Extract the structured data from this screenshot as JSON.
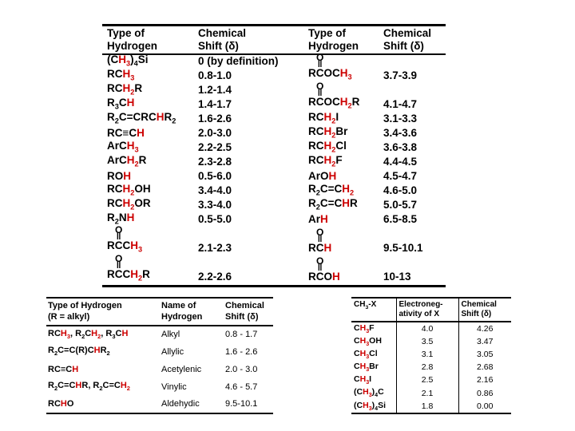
{
  "colors": {
    "red": "#cc0000",
    "text": "#000000",
    "background": "#ffffff"
  },
  "main_table": {
    "headers": {
      "type": "Type of\nHydrogen",
      "shift": "Chemical\nShift (δ)"
    },
    "left_rows": [
      {
        "formula": "(C*H~3~*)~4~Si",
        "shift": "0 (by definition)"
      },
      {
        "formula": "RC*H~3~*",
        "shift": "0.8-1.0"
      },
      {
        "formula": "RC*H~2~*R",
        "shift": "1.2-1.4"
      },
      {
        "formula": "R~3~C*H*",
        "shift": "1.4-1.7"
      },
      {
        "formula": "R~2~C=CRC*H*R~2~",
        "shift": "1.6-2.6"
      },
      {
        "formula": "RC≡C*H*",
        "shift": "2.0-3.0"
      },
      {
        "formula": "ArC*H~3~*",
        "shift": "2.2-2.5"
      },
      {
        "formula": "ArC*H~2~*R",
        "shift": "2.3-2.8"
      },
      {
        "formula": "RO*H*",
        "shift": "0.5-6.0"
      },
      {
        "formula": "RC*H~2~*OH",
        "shift": "3.4-4.0"
      },
      {
        "formula": "RC*H~2~*OR",
        "shift": "3.3-4.0"
      },
      {
        "formula": "R~2~N*H*",
        "shift": "0.5-5.0"
      },
      {
        "formula": "R#C#C*H~3~*",
        "shift": "2.1-2.3"
      },
      {
        "formula": "R#C#C*H~2~*R",
        "shift": "2.2-2.6"
      }
    ],
    "right_rows": [
      {
        "formula": "R#C#OC*H~3~*",
        "shift": "3.7-3.9"
      },
      {
        "formula": "R#C#OC*H~2~*R",
        "shift": "4.1-4.7"
      },
      {
        "formula": "RC*H~2~*I",
        "shift": "3.1-3.3"
      },
      {
        "formula": "RC*H~2~*Br",
        "shift": "3.4-3.6"
      },
      {
        "formula": "RC*H~2~*Cl",
        "shift": "3.6-3.8"
      },
      {
        "formula": "RC*H~2~*F",
        "shift": "4.4-4.5"
      },
      {
        "formula": "ArO*H*",
        "shift": "4.5-4.7"
      },
      {
        "formula": "R~2~C=C*H~2~*",
        "shift": "4.6-5.0"
      },
      {
        "formula": "R~2~C=C*H*R",
        "shift": "5.0-5.7"
      },
      {
        "formula": "Ar*H*",
        "shift": "6.5-8.5"
      },
      {
        "formula": "R#C#*H*",
        "shift": "9.5-10.1"
      },
      {
        "formula": "R#C#O*H*",
        "shift": "10-13"
      }
    ]
  },
  "alkyl_table": {
    "headers": {
      "type": "Type of Hydrogen\n(R = alkyl)",
      "name": "Name of\nHydrogen",
      "shift": "Chemical\nShift (δ)"
    },
    "rows": [
      {
        "formula": "RC*H~3~*, R~2~C*H~2~*, R~3~C*H*",
        "name": "Alkyl",
        "shift": "0.8 - 1.7"
      },
      {
        "formula": "R~2~C=C(R)C*H*R~2~",
        "name": "Allylic",
        "shift": "1.6 - 2.6"
      },
      {
        "formula": "RC≡C*H*",
        "name": "Acetylenic",
        "shift": "2.0 - 3.0"
      },
      {
        "formula": "R~2~C=C*H*R, R~2~C=C*H~2~*",
        "name": "Vinylic",
        "shift": "4.6 - 5.7"
      },
      {
        "formula": "RC*H*O",
        "name": "Aldehydic",
        "shift": "9.5-10.1"
      }
    ]
  },
  "electronegativity_table": {
    "headers": {
      "compound": "CH~3~-X",
      "en": "Electroneg-\nativity of X",
      "shift": "Chemical\nShift (δ)"
    },
    "rows": [
      {
        "formula": "C*H~3~*F",
        "en": "4.0",
        "shift": "4.26"
      },
      {
        "formula": "C*H~3~*OH",
        "en": "3.5",
        "shift": "3.47"
      },
      {
        "formula": "C*H~3~*Cl",
        "en": "3.1",
        "shift": "3.05"
      },
      {
        "formula": "C*H~3~*Br",
        "en": "2.8",
        "shift": "2.68"
      },
      {
        "formula": "C*H~3~*I",
        "en": "2.5",
        "shift": "2.16"
      },
      {
        "formula": "(C*H~3~*)~4~C",
        "en": "2.1",
        "shift": "0.86"
      },
      {
        "formula": "(C*H~3~*)~4~Si",
        "en": "1.8",
        "shift": "0.00"
      }
    ]
  }
}
